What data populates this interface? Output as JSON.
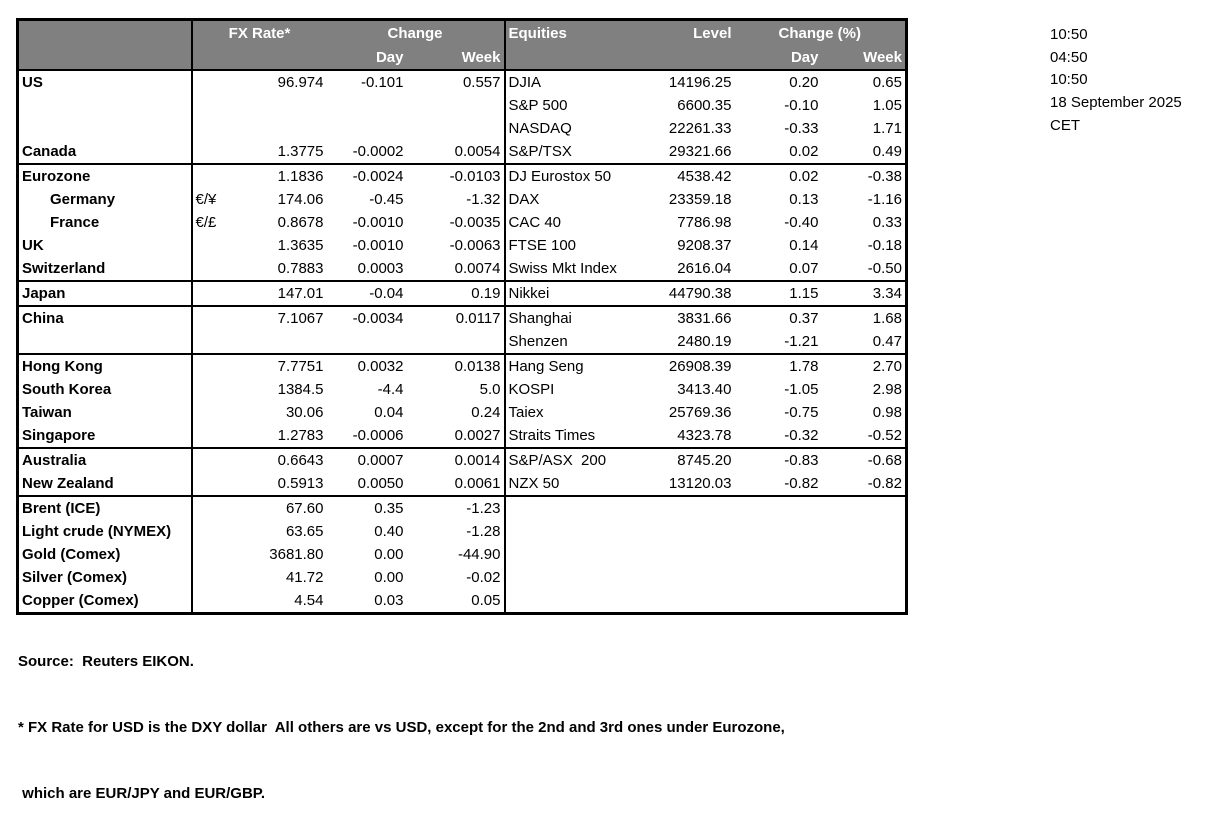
{
  "colors": {
    "header_bg": "#808080",
    "header_text": "#ffffff",
    "border": "#000000"
  },
  "table": {
    "fx_header": {
      "rate": "FX Rate*",
      "change": "Change",
      "day": "Day",
      "week": "Week"
    },
    "equities_header": {
      "name": "Equities",
      "level": "Level",
      "change": "Change (%)",
      "day": "Day",
      "week": "Week"
    },
    "rows": [
      {
        "country": "US",
        "pair": "",
        "rate": "96.974",
        "day": "-0.101",
        "week": "0.557",
        "equity": "DJIA",
        "level": "14196.25",
        "eq_day": "0.20",
        "eq_week": "0.65",
        "separator_above": false,
        "indent": false
      },
      {
        "country": "",
        "pair": "",
        "rate": "",
        "day": "",
        "week": "",
        "equity": "S&P 500",
        "level": "6600.35",
        "eq_day": "-0.10",
        "eq_week": "1.05",
        "separator_above": false,
        "indent": false
      },
      {
        "country": "",
        "pair": "",
        "rate": "",
        "day": "",
        "week": "",
        "equity": "NASDAQ",
        "level": "22261.33",
        "eq_day": "-0.33",
        "eq_week": "1.71",
        "separator_above": false,
        "indent": false
      },
      {
        "country": "Canada",
        "pair": "",
        "rate": "1.3775",
        "day": "-0.0002",
        "week": "0.0054",
        "equity": "S&P/TSX",
        "level": "29321.66",
        "eq_day": "0.02",
        "eq_week": "0.49",
        "separator_above": false,
        "indent": false
      },
      {
        "country": "Eurozone",
        "pair": "",
        "rate": "1.1836",
        "day": "-0.0024",
        "week": "-0.0103",
        "equity": "DJ Eurostox 50",
        "level": "4538.42",
        "eq_day": "0.02",
        "eq_week": "-0.38",
        "separator_above": true,
        "indent": false
      },
      {
        "country": "Germany",
        "pair": "€/¥",
        "rate": "174.06",
        "day": "-0.45",
        "week": "-1.32",
        "equity": "DAX",
        "level": "23359.18",
        "eq_day": "0.13",
        "eq_week": "-1.16",
        "separator_above": false,
        "indent": true
      },
      {
        "country": "France",
        "pair": "€/£",
        "rate": "0.8678",
        "day": "-0.0010",
        "week": "-0.0035",
        "equity": "CAC 40",
        "level": "7786.98",
        "eq_day": "-0.40",
        "eq_week": "0.33",
        "separator_above": false,
        "indent": true
      },
      {
        "country": "UK",
        "pair": "",
        "rate": "1.3635",
        "day": "-0.0010",
        "week": "-0.0063",
        "equity": "FTSE 100",
        "level": "9208.37",
        "eq_day": "0.14",
        "eq_week": "-0.18",
        "separator_above": false,
        "indent": false
      },
      {
        "country": "Switzerland",
        "pair": "",
        "rate": "0.7883",
        "day": "0.0003",
        "week": "0.0074",
        "equity": "Swiss Mkt Index",
        "level": "2616.04",
        "eq_day": "0.07",
        "eq_week": "-0.50",
        "separator_above": false,
        "indent": false
      },
      {
        "country": "Japan",
        "pair": "",
        "rate": "147.01",
        "day": "-0.04",
        "week": "0.19",
        "equity": "Nikkei",
        "level": "44790.38",
        "eq_day": "1.15",
        "eq_week": "3.34",
        "separator_above": true,
        "indent": false
      },
      {
        "country": "China",
        "pair": "",
        "rate": "7.1067",
        "day": "-0.0034",
        "week": "0.0117",
        "equity": "Shanghai",
        "level": "3831.66",
        "eq_day": "0.37",
        "eq_week": "1.68",
        "separator_above": true,
        "indent": false
      },
      {
        "country": "",
        "pair": "",
        "rate": "",
        "day": "",
        "week": "",
        "equity": "Shenzen",
        "level": "2480.19",
        "eq_day": "-1.21",
        "eq_week": "0.47",
        "separator_above": false,
        "indent": false
      },
      {
        "country": "Hong Kong",
        "pair": "",
        "rate": "7.7751",
        "day": "0.0032",
        "week": "0.0138",
        "equity": "Hang Seng",
        "level": "26908.39",
        "eq_day": "1.78",
        "eq_week": "2.70",
        "separator_above": true,
        "indent": false
      },
      {
        "country": "South Korea",
        "pair": "",
        "rate": "1384.5",
        "day": "-4.4",
        "week": "5.0",
        "equity": "KOSPI",
        "level": "3413.40",
        "eq_day": "-1.05",
        "eq_week": "2.98",
        "separator_above": false,
        "indent": false
      },
      {
        "country": "Taiwan",
        "pair": "",
        "rate": "30.06",
        "day": "0.04",
        "week": "0.24",
        "equity": "Taiex",
        "level": "25769.36",
        "eq_day": "-0.75",
        "eq_week": "0.98",
        "separator_above": false,
        "indent": false
      },
      {
        "country": "Singapore",
        "pair": "",
        "rate": "1.2783",
        "day": "-0.0006",
        "week": "0.0027",
        "equity": "Straits Times",
        "level": "4323.78",
        "eq_day": "-0.32",
        "eq_week": "-0.52",
        "separator_above": false,
        "indent": false
      },
      {
        "country": "Australia",
        "pair": "",
        "rate": "0.6643",
        "day": "0.0007",
        "week": "0.0014",
        "equity": "S&P/ASX  200",
        "level": "8745.20",
        "eq_day": "-0.83",
        "eq_week": "-0.68",
        "separator_above": true,
        "indent": false
      },
      {
        "country": "New Zealand",
        "pair": "",
        "rate": "0.5913",
        "day": "0.0050",
        "week": "0.0061",
        "equity": "NZX 50",
        "level": "13120.03",
        "eq_day": "-0.82",
        "eq_week": "-0.82",
        "separator_above": false,
        "indent": false
      },
      {
        "country": "Brent (ICE)",
        "pair": "",
        "rate": "67.60",
        "day": "0.35",
        "week": "-1.23",
        "equity": "",
        "level": "",
        "eq_day": "",
        "eq_week": "",
        "separator_above": true,
        "indent": false
      },
      {
        "country": "Light crude (NYMEX)",
        "pair": "",
        "rate": "63.65",
        "day": "0.40",
        "week": "-1.28",
        "equity": "",
        "level": "",
        "eq_day": "",
        "eq_week": "",
        "separator_above": false,
        "indent": false
      },
      {
        "country": "Gold (Comex)",
        "pair": "",
        "rate": "3681.80",
        "day": "0.00",
        "week": "-44.90",
        "equity": "",
        "level": "",
        "eq_day": "",
        "eq_week": "",
        "separator_above": false,
        "indent": false
      },
      {
        "country": "Silver (Comex)",
        "pair": "",
        "rate": "41.72",
        "day": "0.00",
        "week": "-0.02",
        "equity": "",
        "level": "",
        "eq_day": "",
        "eq_week": "",
        "separator_above": false,
        "indent": false
      },
      {
        "country": "Copper (Comex)",
        "pair": "",
        "rate": "4.54",
        "day": "0.03",
        "week": "0.05",
        "equity": "",
        "level": "",
        "eq_day": "",
        "eq_week": "",
        "separator_above": false,
        "indent": false
      }
    ]
  },
  "timestamps": [
    "10:50",
    "04:50",
    "10:50",
    "18 September 2025",
    "CET"
  ],
  "footer": [
    "Source:  Reuters EIKON.",
    "* FX Rate for USD is the DXY dollar  All others are vs USD, except for the 2nd and 3rd ones under Eurozone,",
    " which are EUR/JPY and EUR/GBP."
  ]
}
